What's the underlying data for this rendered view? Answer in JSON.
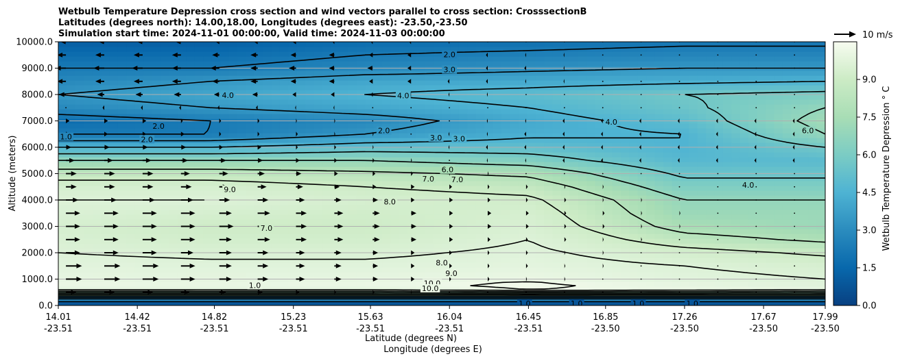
{
  "chart_data": {
    "type": "heatmap",
    "title_lines": [
      "Wetbulb Temperature Depression cross section and wind vectors parallel to cross section: CrosssectionB",
      "Latitudes (degrees north): 14.00,18.00, Longitudes (degrees east): -23.50,-23.50",
      "Simulation start time: 2024-11-01 00:00:00, Valid time: 2024-11-03 00:00:00"
    ],
    "ylabel": "Altitude (meters)",
    "xlabel_lines": [
      "Latitude (degrees N)",
      "Longitude (degrees E)"
    ],
    "colorbar_label": "Wetbulb Temperature Depression $^\\circ$C",
    "colorbar_label_display": "Wetbulb Temperature Depression ° C",
    "quiver_key_label": "10 m/s",
    "colormap": "GnBu_r",
    "x_range": [
      14.01,
      17.99
    ],
    "y_range": [
      0,
      10000
    ],
    "value_range": [
      0,
      10.5
    ],
    "grid": "horizontal",
    "x_ticks": [
      {
        "lat": "14.01",
        "lon": "-23.51"
      },
      {
        "lat": "14.42",
        "lon": "-23.51"
      },
      {
        "lat": "14.82",
        "lon": "-23.51"
      },
      {
        "lat": "15.23",
        "lon": "-23.51"
      },
      {
        "lat": "15.63",
        "lon": "-23.51"
      },
      {
        "lat": "16.04",
        "lon": "-23.51"
      },
      {
        "lat": "16.45",
        "lon": "-23.51"
      },
      {
        "lat": "16.85",
        "lon": "-23.50"
      },
      {
        "lat": "17.26",
        "lon": "-23.50"
      },
      {
        "lat": "17.67",
        "lon": "-23.50"
      },
      {
        "lat": "17.99",
        "lon": "-23.50"
      }
    ],
    "y_ticks": [
      "0.0",
      "1000.0",
      "2000.0",
      "3000.0",
      "4000.0",
      "5000.0",
      "6000.0",
      "7000.0",
      "8000.0",
      "9000.0",
      "10000.0"
    ],
    "colorbar_ticks": [
      "0.0",
      "1.5",
      "3.0",
      "4.5",
      "6.0",
      "7.5",
      "9.0"
    ],
    "profile_altitudes": [
      0,
      200,
      400,
      600,
      800,
      1000,
      1500,
      2000,
      2500,
      3000,
      3500,
      4000,
      4500,
      5000,
      5500,
      6000,
      6500,
      7000,
      7500,
      8000,
      8500,
      9000,
      9500,
      10000
    ],
    "profiles": [
      {
        "lat": 14.01,
        "values": [
          0.5,
          1.0,
          5.0,
          9.5,
          9.8,
          9.6,
          9.3,
          9.0,
          8.7,
          8.5,
          8.8,
          9.0,
          8.5,
          7.5,
          6.0,
          4.0,
          2.0,
          1.5,
          2.5,
          3.0,
          2.5,
          2.0,
          1.5,
          1.0
        ]
      },
      {
        "lat": 14.8,
        "values": [
          0.5,
          1.0,
          5.0,
          9.5,
          9.7,
          9.5,
          9.2,
          8.8,
          8.3,
          8.0,
          8.5,
          9.0,
          8.5,
          7.5,
          6.0,
          4.0,
          2.0,
          2.0,
          3.0,
          3.5,
          3.0,
          2.0,
          1.5,
          1.0
        ]
      },
      {
        "lat": 15.6,
        "values": [
          0.5,
          1.0,
          5.0,
          9.5,
          9.8,
          9.6,
          9.2,
          8.8,
          8.3,
          8.0,
          8.2,
          8.5,
          8.0,
          7.2,
          6.0,
          4.5,
          3.0,
          2.5,
          3.5,
          4.0,
          3.5,
          2.5,
          2.0,
          1.5
        ]
      },
      {
        "lat": 16.45,
        "values": [
          0.5,
          1.0,
          5.0,
          10.0,
          10.2,
          9.8,
          9.4,
          9.2,
          9.0,
          8.7,
          8.5,
          8.2,
          7.6,
          6.8,
          5.5,
          4.5,
          3.8,
          3.6,
          4.0,
          4.4,
          3.6,
          2.8,
          2.2,
          1.6
        ]
      },
      {
        "lat": 17.26,
        "values": [
          0.5,
          1.0,
          5.0,
          9.8,
          9.6,
          9.3,
          9.0,
          8.4,
          7.4,
          6.6,
          6.2,
          6.0,
          5.4,
          4.8,
          4.2,
          4.0,
          4.0,
          4.4,
          4.8,
          5.0,
          3.8,
          3.0,
          2.4,
          1.8
        ]
      },
      {
        "lat": 17.99,
        "values": [
          0.5,
          1.0,
          5.0,
          9.5,
          9.2,
          9.0,
          8.6,
          7.8,
          6.8,
          6.2,
          6.2,
          6.0,
          5.4,
          4.8,
          4.3,
          5.0,
          6.0,
          6.4,
          6.0,
          5.3,
          4.0,
          3.0,
          2.4,
          1.8
        ]
      }
    ],
    "contour_labels": [
      {
        "text": "2.0",
        "lat": 16.04,
        "alt": 9520
      },
      {
        "text": "3.0",
        "lat": 16.04,
        "alt": 8950
      },
      {
        "text": "4.0",
        "lat": 14.89,
        "alt": 7980
      },
      {
        "text": "4.0",
        "lat": 15.8,
        "alt": 7960
      },
      {
        "text": "2.0",
        "lat": 14.53,
        "alt": 6800
      },
      {
        "text": "2.0",
        "lat": 14.47,
        "alt": 6300
      },
      {
        "text": "2.0",
        "lat": 15.7,
        "alt": 6630
      },
      {
        "text": "1.0",
        "lat": 14.05,
        "alt": 6400
      },
      {
        "text": "3.0",
        "lat": 15.97,
        "alt": 6370
      },
      {
        "text": "3.0",
        "lat": 16.09,
        "alt": 6320
      },
      {
        "text": "4.0",
        "lat": 16.88,
        "alt": 6960
      },
      {
        "text": "6.0",
        "lat": 17.9,
        "alt": 6630
      },
      {
        "text": "6.0",
        "lat": 16.03,
        "alt": 5150
      },
      {
        "text": "7.0",
        "lat": 15.93,
        "alt": 4800
      },
      {
        "text": "7.0",
        "lat": 16.08,
        "alt": 4780
      },
      {
        "text": "4.0",
        "lat": 17.59,
        "alt": 4570
      },
      {
        "text": "9.0",
        "lat": 14.9,
        "alt": 4400
      },
      {
        "text": "8.0",
        "lat": 15.73,
        "alt": 3930
      },
      {
        "text": "7.0",
        "lat": 15.09,
        "alt": 2940
      },
      {
        "text": "8.0",
        "lat": 16.0,
        "alt": 1620
      },
      {
        "text": "9.0",
        "lat": 16.05,
        "alt": 1220
      },
      {
        "text": "10.0",
        "lat": 15.95,
        "alt": 850
      },
      {
        "text": "10.0",
        "lat": 15.94,
        "alt": 650
      },
      {
        "text": "1.0",
        "lat": 15.03,
        "alt": 770
      },
      {
        "text": "1.0",
        "lat": 16.43,
        "alt": 80
      },
      {
        "text": "1.0",
        "lat": 16.7,
        "alt": 80
      },
      {
        "text": "1.0",
        "lat": 17.02,
        "alt": 80
      },
      {
        "text": "1.0",
        "lat": 17.3,
        "alt": 80
      }
    ],
    "wind_row_altitudes": [
      500,
      1000,
      1500,
      2000,
      2500,
      3000,
      3500,
      4000,
      4500,
      5000,
      5500,
      6000,
      6500,
      7000,
      7500,
      8000,
      8500,
      9000,
      9500,
      10000
    ],
    "wind_columns": 20,
    "wind_u_west_east": [
      [
        6,
        6,
        6,
        5,
        4,
        3,
        2,
        1,
        1,
        0.5,
        0,
        0,
        0,
        0,
        0,
        0,
        0,
        0,
        0,
        0
      ],
      [
        9,
        9,
        9,
        8,
        7,
        6,
        5,
        4,
        3,
        2,
        1,
        1,
        0.5,
        0.5,
        0,
        0,
        0,
        0,
        0,
        0
      ],
      [
        9,
        9,
        9,
        8,
        7,
        6,
        5,
        4,
        3,
        2,
        1.5,
        1,
        1,
        0.5,
        0.5,
        0,
        0,
        0,
        0,
        0
      ],
      [
        8,
        8,
        8,
        7,
        7,
        6,
        5,
        4,
        3,
        2,
        1.5,
        1,
        1,
        0.5,
        0.5,
        0,
        0,
        0,
        0,
        0
      ],
      [
        8,
        8,
        8,
        8,
        7,
        7,
        6,
        5,
        4,
        3,
        2,
        1.5,
        1,
        1,
        0.5,
        0.5,
        0,
        0,
        0,
        0
      ],
      [
        8,
        8,
        8,
        8,
        8,
        7,
        6,
        5,
        4,
        3,
        2,
        2,
        1.5,
        1,
        1,
        0.5,
        0.5,
        0,
        0,
        0
      ],
      [
        8,
        8,
        8,
        8,
        7,
        7,
        6,
        5,
        4,
        3,
        2,
        2,
        1.5,
        1,
        1,
        0.5,
        0.5,
        0,
        0,
        0
      ],
      [
        7,
        7,
        7,
        7,
        6,
        6,
        5,
        4,
        3,
        2,
        2,
        1.5,
        1,
        1,
        0.5,
        0.5,
        0,
        0,
        0,
        0
      ],
      [
        6,
        6,
        6,
        6,
        5,
        5,
        4,
        3,
        2,
        2,
        1.5,
        1,
        1,
        0.5,
        0.5,
        0,
        0,
        0,
        0,
        0
      ],
      [
        6,
        6,
        6,
        5,
        5,
        4,
        3,
        2,
        1.5,
        1,
        0.5,
        0.5,
        0,
        0,
        0,
        0,
        0,
        0,
        0,
        0
      ],
      [
        5,
        5,
        5,
        4,
        4,
        3,
        2,
        1.5,
        1,
        0.5,
        0,
        -0.5,
        -0.5,
        -1,
        -1,
        -1,
        -1,
        -1,
        -1,
        -1
      ],
      [
        3,
        3,
        3,
        3,
        2,
        2,
        1,
        1,
        0.5,
        0,
        -0.5,
        -1,
        -1,
        -1,
        -1,
        -1,
        -1,
        -1,
        -1,
        -1
      ],
      [
        2,
        2,
        2,
        2,
        1,
        1,
        1,
        0.5,
        0.5,
        0,
        -0.5,
        -0.5,
        -1,
        -1,
        -1,
        -1,
        -1,
        -1,
        -1,
        -1
      ],
      [
        2,
        2,
        2,
        1,
        1,
        1,
        0.5,
        0.5,
        0,
        0,
        0,
        -0.5,
        -0.5,
        -1,
        -1,
        -1,
        -1,
        -1,
        -1,
        -1
      ],
      [
        0,
        -1,
        -1,
        -1,
        -1,
        -1,
        -0.5,
        -0.5,
        0,
        0,
        0,
        0,
        0,
        0,
        0,
        0,
        0,
        0,
        0,
        0
      ],
      [
        -4,
        -4,
        -4,
        -4,
        -3,
        -3,
        -2,
        -2,
        -1,
        -1,
        -0.5,
        -0.5,
        0,
        0,
        0,
        0,
        0,
        0,
        0,
        0
      ],
      [
        -5,
        -5,
        -5,
        -5,
        -4,
        -4,
        -3,
        -3,
        -2,
        -2,
        -1,
        -1,
        -0.5,
        -0.5,
        0,
        0,
        0,
        0,
        0,
        0
      ],
      [
        -6,
        -6,
        -6,
        -5,
        -5,
        -4,
        -4,
        -3,
        -3,
        -2,
        -2,
        -1,
        -1,
        -0.5,
        -0.5,
        0,
        0,
        0,
        0,
        0
      ],
      [
        -5,
        -5,
        -5,
        -5,
        -4,
        -4,
        -3,
        -3,
        -2,
        -2,
        -1,
        -1,
        -0.5,
        -0.5,
        0,
        0,
        0,
        0,
        0,
        0
      ],
      [
        -3,
        -3,
        -3,
        -3,
        -2,
        -2,
        -2,
        -1,
        -1,
        -1,
        -0.5,
        0,
        0,
        0,
        0,
        0,
        0,
        0,
        0,
        0
      ]
    ]
  }
}
